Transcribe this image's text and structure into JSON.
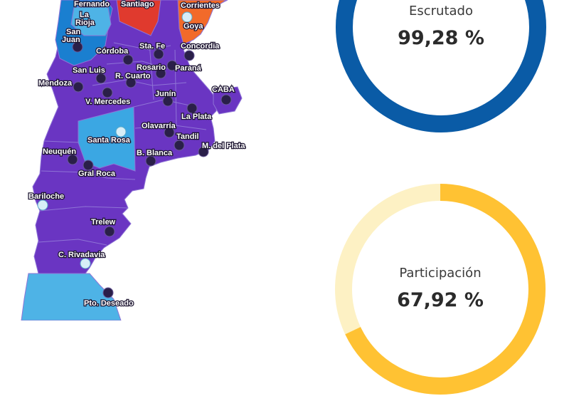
{
  "map": {
    "colors": {
      "purple": "#6a35c2",
      "red": "#e03a2e",
      "orange": "#f26a2a",
      "blue": "#1a7fd0",
      "light_blue": "#4eb3e6",
      "sky": "#3ba7e3",
      "border": "#8f74d6",
      "marker_dark": "#2a1f49"
    },
    "cities": [
      {
        "name": "Fernando"
      },
      {
        "name": "Santiago"
      },
      {
        "name": "Corrientes"
      },
      {
        "name": "La Rioja"
      },
      {
        "name": "Goya"
      },
      {
        "name": "San Juan"
      },
      {
        "name": "Córdoba"
      },
      {
        "name": "Sta. Fe"
      },
      {
        "name": "Concordia"
      },
      {
        "name": "San Luis"
      },
      {
        "name": "Rosario"
      },
      {
        "name": "Paraná"
      },
      {
        "name": "Mendoza"
      },
      {
        "name": "R. Cuarto"
      },
      {
        "name": "CABA"
      },
      {
        "name": "Junín"
      },
      {
        "name": "V. Mercedes"
      },
      {
        "name": "La Plata"
      },
      {
        "name": "Olavarría"
      },
      {
        "name": "Santa Rosa"
      },
      {
        "name": "Tandil"
      },
      {
        "name": "M. del Plata"
      },
      {
        "name": "Neuquén"
      },
      {
        "name": "B. Blanca"
      },
      {
        "name": "Gral Roca"
      },
      {
        "name": "Bariloche"
      },
      {
        "name": "Trelew"
      },
      {
        "name": "C. Rivadavia"
      },
      {
        "name": "Pto. Deseado"
      }
    ]
  },
  "stats": {
    "escrutado": {
      "label": "Escrutado",
      "value": "99,28 %",
      "fraction": 0.9928,
      "color": "#0a5ba6",
      "track": "#cfe0f0"
    },
    "participacion": {
      "label": "Participación",
      "value": "67,92 %",
      "fraction": 0.6792,
      "color": "#ffc233",
      "track": "#fdf1c4"
    }
  }
}
